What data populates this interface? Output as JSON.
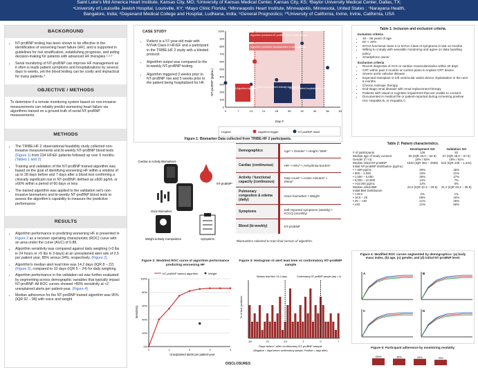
{
  "header": {
    "line1": "Saint Luke's Mid America Heart Institute, Kansas City, MO; ²University of Kansas Medical Center, Kansas City, KS; ³Baylor University Medical Center, Dallas, TX;",
    "line2": "⁴University of Louisville Jewish Hospital, Louisville, KY; ⁵Mayo Clinic Florida; ⁶Minneapolis Heart Institute, Minneapolis, Minnesota, United States ; ⁷Narayana Health,",
    "line3": "Bangalore, India; ⁸Dayanand Medical College and Hospital, Ludhiana, India; ⁹General Prognostics; ¹⁰University of California, Irvine, Irvine, California, USA"
  },
  "left": {
    "background_title": "BACKGROUND",
    "bg1": "NT-proBNP testing has been shown to be effective in the identification of worsening heart failure (HF), and is supported in guidelines for risk stratification, establishing prognosis, and aiding decision-making for patients with advanced HF therapies.¹·²·³",
    "bg2": "Serial monitoring of NT-proBNP can improve HF management as it often is leads patient symptoms and hospitalizations by several days to weeks, yet the blood testing can be costly and impractical for many patients.⁴",
    "obj_title": "OBJECTIVE / METHODS",
    "obj": "To determine if a remote monitoring system based on non-invasive measurements can reliably predict worsening heart failure via algorithms trained on a ground truth of serial NT-proBNP measurements.",
    "methods_title": "METHODS",
    "m1a": "The TRIBE-HF 2 observational feasibility study collected non-invasive measurements and bi-weekly NT-proBNP blood tests ",
    "m1link": "(Figure 1)",
    "m1b": " from 234 HFrEF patients followed up over 6 months. ",
    "m1link2": "(Tables 1 and 2)",
    "m2": "Training and validation of the NT-proBNP trained algorithm was based on the goal of identifying worsening HF within a window of up to 28 days before and 7 days after a blood test confirming a clinically significant rise in NT-proBNP, defined as ≥600 pg/mL or ≥60% within a period of 60 days or less.",
    "m3": "The trained algorithm was applied to the validation set's non-invasive biomarkers and bi-weekly NT-proBNP blood tests to assess the algorithm's capability to measure the predictive performance.",
    "results_title": "RESULTS",
    "r1a": "Algorithm performance in predicting worsening HF is presented in ",
    "r1link": "Figure 2",
    "r1b": " as a receiver operating characteristic (ROC) curve with an area under the curve (AUC) of 0.88.",
    "r2a": "Algorithm sensitivity was compared against daily weighing (>3 lbs in 24 hours or >5 lbs in 3 days) at an unexplained alert rate of 2.5 per patient year, 85% versus 34%, respectively. ",
    "r2link": "(Figure 2)",
    "r3a": "Algorithm's median alert lead time was 14.2 days (IQR 8 – 22) ",
    "r3link": "(Figure 3)",
    "r3b": ", compared to 10 days (IQR 5 – 24) for daily weighing.",
    "r4a": "Algorithm performance in the validation set was further evaluated by segmenting across demographic variables that typically impact NT-proBNP. All ROC curves showed >80% sensitivity at <2 unexplained alerts per patient-year. ",
    "r4link": "(Figure 4)",
    "r5": "Median adherence for the NT-proBNP trained algorithm was 95% (IQR 92 – 98) with voice and weight"
  },
  "case": {
    "title": "CASE STUDY",
    "b1": "Patient is a 57-year-old male with NYHA Class II HFrEF and a participant in the TRIBE-HF 2 study with a blinded protocol.",
    "b2": "Algorithm output was compared to the bi-weekly NT-proBNP testing.",
    "b3": "Algorithm triggered 3 weeks prior to NT-proBNP rise and 5 weeks prior to the patient being hospitalized for HF.",
    "ylabel": "NT-proBNP (pg/mL)",
    "xlabel": "Day #",
    "y_ticks": [
      "1000",
      "900",
      "800",
      "700",
      "600",
      "500",
      "400",
      "300",
      "200",
      "100",
      "0"
    ],
    "x_ticks": [
      "0",
      "7",
      "14",
      "21",
      "28",
      "35",
      "42",
      "49",
      "56",
      "63"
    ],
    "ann_top1": "Algorithm predicted NT-proBNP rise 3 weeks ahead",
    "ann_top2": "Algorithm predicted hospitalization 5 weeks ahead",
    "ann1": "Day 16 Algorithm triggered",
    "ann2": "Day 42 Blood test confirmed clinically significant rise in NT-proBNP",
    "ann3": "Day 54 Patient hospitalized for HF",
    "legend": "Legend:",
    "legend_alg": "Algorithm trigger",
    "legend_nt": "NT-proBNP result",
    "caption": "Figure 1: Biomarker Data collected from TRIBE-HF 2 participants.",
    "lbl_cardiac": "Cardiac & Activity Biomarkers",
    "lbl_nt": "NT-proBNP*",
    "lbl_voice": "Voice Biomarker",
    "lbl_wbc": "Weight & Body Composition",
    "lbl_symp": "Symptoms"
  },
  "domains": {
    "rows": [
      {
        "name": "Demographics",
        "items": "Age* • Gender* • Height / BMI*"
      },
      {
        "name": "Cardiac (continuous)",
        "items": "HR* • HRV* • Arrhythmia burden*"
      },
      {
        "name": "Activity / functional capacity (continuous)",
        "items": "Step count* • Active minutes* • Sleep*"
      },
      {
        "name": "Pulmonary congestion & edema (daily)",
        "items": "Voice biomarker • Weight"
      },
      {
        "name": "Symptoms",
        "items": "Self-reported symptoms (weekly) • KCCQ (monthly)"
      },
      {
        "name": "Blood (bi-weekly)",
        "items": "NT-proBNP"
      }
    ],
    "footnote": "*Biomarkers selected to train final version of algorithm."
  },
  "table1": {
    "title": "Table 1: Inclusion and exclusion criteria.",
    "inc_title": "Inclusion criteria",
    "inc": [
      "18 – 85 years of age",
      "EF < 40%",
      "NYHA functional class II or NYHA Class III symptoms in last 12 months",
      "Willing to comply with wearable monitoring and agree on data handling policy",
      "Smartphone owner"
    ],
    "exc_title": "Exclusion criteria",
    "exc": [
      "Recent diagnosis of ACS or cardiac revascularization within 30 days",
      "CRT within past 3 months or current plans to implant CRT device",
      "Severe aortic valvular disease",
      "Expected transplant or left ventricular assist device implantation in the next 6 months",
      "Chronic inotropic therapy",
      "End-stage renal disease with renal replacement therapy",
      "Patients with visual or cognitive impairment that are unable to consent",
      "Documented in medical file or patient-reported during screening positive HIV, Hepatitis B, or Hepatitis C"
    ]
  },
  "table2": {
    "title": "Table 2: Patient characteristics.",
    "h1": "Development Set",
    "h2": "Validation Set",
    "rows": [
      [
        "# of participants",
        "126",
        "81"
      ],
      [
        "Median age of study consent",
        "55 (IQR 46.0 – 62.5)",
        "57 (IQR 49.0 – 67.0)"
      ],
      [
        "Gender (f / m)",
        "18% / 82%",
        "19% / 81%"
      ],
      [
        "Median initial NT-proBNP",
        "1533 (IQR 382 – 4569)",
        "522 (IQR 235 – 1,431)"
      ],
      [
        "Initial NT-proBNP distribution (pg/mL)",
        "",
        ""
      ],
      [
        "• < 500 pg/mL",
        "30%",
        "45%"
      ],
      [
        "• 500 – 1,000",
        "10%",
        "21%"
      ],
      [
        "• 1,000 – 5,000",
        "36%",
        "27%"
      ],
      [
        "• 5,000 – 10,000",
        "12%",
        "7%"
      ],
      [
        "• >10,000 pg/mL",
        "12%",
        "0%"
      ],
      [
        "Median initial BMI",
        "24.0 (IQR 22.3 – 29.5)",
        "31.2 (IQR 26.3 – 35.6)"
      ],
      [
        "Initial BMI Distribution",
        "",
        ""
      ],
      [
        "• <18.5",
        "2%",
        "1%"
      ],
      [
        "• 18.5 – 25",
        "55%",
        "16%"
      ],
      [
        "• 25 – <30",
        "21%",
        "26%"
      ],
      [
        "• ≥30",
        "21%",
        "58%"
      ]
    ]
  },
  "fig2": {
    "title": "Figure 2: Modified ROC curve of algorithm performance predicting worsening HF",
    "legend_alg": "NT-proBNP trained algorithm",
    "legend_w": "Weight",
    "ylabel": "Sensitivity",
    "xlabel": "Unexplained alerts per patient-year",
    "y_ticks": [
      "100%",
      "80%",
      "60%",
      "40%",
      "20%",
      "0%"
    ],
    "x_ticks": [
      "0",
      "1",
      "2",
      "3",
      "4"
    ]
  },
  "fig3": {
    "title": "Figure 3: Histogram of alert lead time vs confirmatory NT-proBNP sample",
    "ann_median": "Median lead time 14.2 days",
    "ann_conf": "Confirmatory NT-proBNP sample (day = 0)",
    "ylabel": "% of true positives",
    "xlabel1": "Days before / after confirmatory NT-proBNP sample",
    "xlabel2": "(Negative = days before confirmatory sample, Positive = days after)",
    "x_ticks": [
      "-28",
      "-21",
      "-14",
      "-7",
      "0",
      "7"
    ]
  },
  "fig4": {
    "title": "Figure 4: Modified ROC curves segmented by demographics: (a) body mass index, (b) age, (c) gender, and (d) initial NT-proBNP level.",
    "panels": [
      "A",
      "B",
      "C",
      "D"
    ]
  },
  "fig5": {
    "title": "Figure 5: Participant adherence by monitoring modality.",
    "labels": [
      "100%",
      "95%",
      "92%",
      "79%"
    ]
  },
  "disclosures": "DISCLOSURES",
  "chart_data": [
    {
      "type": "scatter",
      "title": "",
      "xlabel": "Day #",
      "ylabel": "NT-proBNP (pg/mL)",
      "ylim": [
        0,
        1000
      ],
      "xlim": [
        0,
        63
      ],
      "points": [
        {
          "x": 0,
          "y": 320
        },
        {
          "x": 14,
          "y": 300
        },
        {
          "x": 28,
          "y": 360
        },
        {
          "x": 42,
          "y": 840
        },
        {
          "x": 56,
          "y": 520
        }
      ],
      "algorithm_trigger_day": 16,
      "hospitalization_day": 54
    },
    {
      "type": "line",
      "title": "Figure 2: Modified ROC curve of algorithm performance predicting worsening HF",
      "xlabel": "Unexplained alerts per patient-year",
      "ylabel": "Sensitivity",
      "xlim": [
        0,
        4
      ],
      "ylim": [
        0,
        100
      ],
      "series": [
        {
          "name": "NT-proBNP trained algorithm",
          "x": [
            0,
            0.5,
            1,
            1.5,
            2,
            2.5,
            3,
            3.5,
            4
          ],
          "values": [
            0,
            40,
            56,
            75,
            82,
            85,
            86,
            86,
            86
          ]
        },
        {
          "name": "Weight",
          "x": [
            2.5
          ],
          "values": [
            34
          ]
        }
      ]
    },
    {
      "type": "bar",
      "title": "Figure 3: Histogram of alert lead time vs confirmatory NT-proBNP sample",
      "xlabel": "Days before / after confirmatory NT-proBNP sample",
      "ylabel": "% of true positives",
      "categories": [
        "-28",
        "-27",
        "-26",
        "-25",
        "-24",
        "-23",
        "-22",
        "-21",
        "-20",
        "-19",
        "-18",
        "-17",
        "-16",
        "-15",
        "-14",
        "-13",
        "-12",
        "-11",
        "-10",
        "-9",
        "-8",
        "-7",
        "-6",
        "-5",
        "-4",
        "-3",
        "-2",
        "-1",
        "0",
        "1",
        "2",
        "3",
        "4",
        "5",
        "6",
        "7"
      ],
      "values": [
        4,
        2,
        3,
        2,
        4,
        1,
        2,
        3,
        2,
        4,
        2,
        3,
        5,
        1,
        2,
        4,
        6,
        2,
        3,
        2,
        4,
        2,
        5,
        3,
        6,
        2,
        4,
        3,
        5,
        4,
        2,
        2,
        3,
        2,
        1,
        3
      ]
    }
  ]
}
